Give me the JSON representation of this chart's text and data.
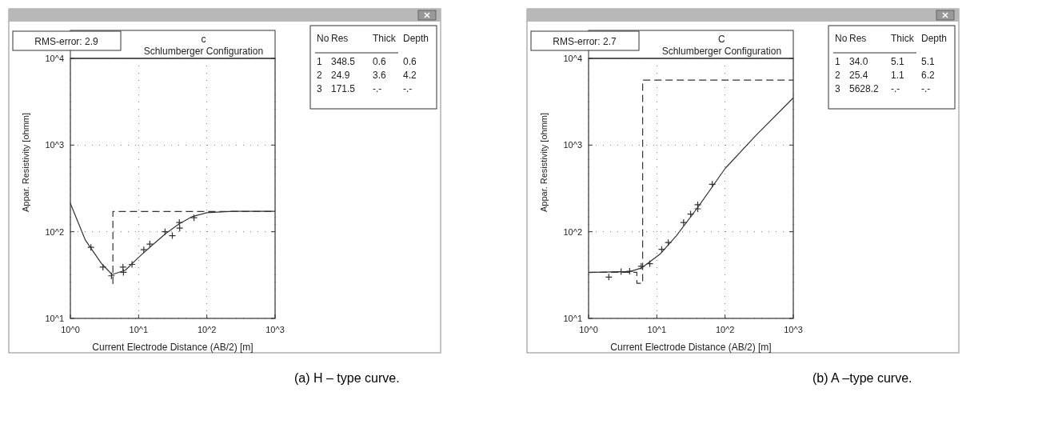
{
  "chart_data": [
    {
      "type": "line",
      "title": "c",
      "subtitle": "Schlumberger Configuration",
      "xlabel": "Current Electrode Distance (AB/2) [m]",
      "ylabel": "Appar. Resistivity [ohmm]",
      "log": "xy",
      "grid": true,
      "xlim": [
        1,
        1000
      ],
      "ylim": [
        10,
        10000
      ],
      "xticks": [
        {
          "value": 1,
          "label": "10^0"
        },
        {
          "value": 10,
          "label": "10^1"
        },
        {
          "value": 100,
          "label": "10^2"
        },
        {
          "value": 1000,
          "label": "10^3"
        }
      ],
      "yticks": [
        {
          "value": 10,
          "label": "10^1"
        },
        {
          "value": 100,
          "label": "10^2"
        },
        {
          "value": 1000,
          "label": "10^3"
        },
        {
          "value": 10000,
          "label": "10^4"
        }
      ],
      "annotations": [
        "RMS-error: 2.9",
        "No Res Thick Depth",
        "1 348.5 0.6 0.6",
        "2 24.9 3.6 4.2",
        "3 171.5 -.- -.-",
        "(a) H – type curve."
      ],
      "series": [
        {
          "type": "scatter",
          "marker": "cross",
          "color": "#333333",
          "x": [
            2.0,
            3.0,
            4.0,
            5.9,
            6.0,
            8.0,
            11.9,
            14.6,
            24.4,
            31.2,
            39.5,
            40,
            64.8
          ],
          "values": [
            66,
            39,
            31,
            39,
            34,
            42,
            62,
            72,
            100,
            90,
            128,
            110,
            145
          ]
        },
        {
          "type": "line",
          "line_style": "solid",
          "color": "#333333",
          "x": [
            1,
            1.66,
            2.85,
            4.09,
            6.4,
            10.1,
            15.8,
            24.9,
            39,
            61.6,
            100,
            237,
            1000
          ],
          "values": [
            212,
            80,
            43,
            32,
            36,
            51,
            70,
            95,
            123,
            150,
            166,
            172,
            172
          ]
        },
        {
          "type": "step",
          "line_style": "dashed",
          "color": "#333333",
          "x": [
            4.2,
            4.2,
            1000
          ],
          "values": [
            24.9,
            171.5,
            171.5
          ]
        }
      ]
    },
    {
      "type": "line",
      "title": "C",
      "subtitle": "Schlumberger Configuration",
      "xlabel": "Current Electrode Distance (AB/2) [m]",
      "ylabel": "Appar. Resistivity [ohmm]",
      "log": "xy",
      "grid": true,
      "xlim": [
        1,
        1000
      ],
      "ylim": [
        10,
        10000
      ],
      "xticks": [
        {
          "value": 1,
          "label": "10^0"
        },
        {
          "value": 10,
          "label": "10^1"
        },
        {
          "value": 100,
          "label": "10^2"
        },
        {
          "value": 1000,
          "label": "10^3"
        }
      ],
      "yticks": [
        {
          "value": 10,
          "label": "10^1"
        },
        {
          "value": 100,
          "label": "10^2"
        },
        {
          "value": 1000,
          "label": "10^3"
        },
        {
          "value": 10000,
          "label": "10^4"
        }
      ],
      "annotations": [
        "RMS-error: 2.7",
        "No Res Thick Depth",
        "1 34.0 5.1 5.1",
        "2 25.4 1.1 6.2",
        "3 5628.2 -.- -.-",
        "(b) A –type curve."
      ],
      "series": [
        {
          "type": "scatter",
          "marker": "cross",
          "color": "#333333",
          "x": [
            1.98,
            3.0,
            4.0,
            5.9,
            7.9,
            11.8,
            14.7,
            24.7,
            31.3,
            39.8,
            39.8,
            64.9
          ],
          "values": [
            30,
            34.6,
            35,
            40,
            42.7,
            62.7,
            75,
            128,
            160,
            184,
            205,
            353
          ]
        },
        {
          "type": "line",
          "line_style": "solid",
          "color": "#333333",
          "x": [
            1,
            4.05,
            5.9,
            11.1,
            19.4,
            40.4,
            101,
            279,
            1000
          ],
          "values": [
            33.9,
            34.8,
            38,
            55,
            90,
            194,
            541,
            1276,
            3508
          ]
        },
        {
          "type": "step",
          "line_style": "dashed",
          "color": "#333333",
          "x": [
            1,
            5.1,
            6.2,
            1000
          ],
          "values": [
            34,
            25.4,
            5628.2,
            5628.2
          ]
        }
      ]
    }
  ]
}
